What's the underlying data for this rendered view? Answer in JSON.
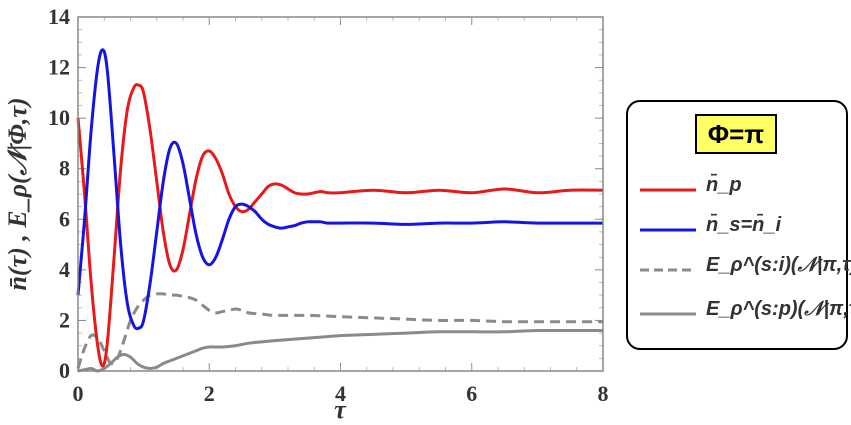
{
  "chart_data": {
    "type": "line",
    "title": "",
    "xlabel": "τ",
    "ylabel": "n̄(τ) , E_ρ(𝒩|Φ,τ)",
    "xlim": [
      0,
      8
    ],
    "ylim": [
      0,
      14
    ],
    "xticks": [
      "0",
      "2",
      "4",
      "6",
      "8"
    ],
    "yticks": [
      "0",
      "2",
      "4",
      "6",
      "8",
      "10",
      "12",
      "14"
    ],
    "legend_title": "Φ=π",
    "legend_position": "right",
    "series": [
      {
        "name": "n̄_p",
        "color": "#e8191a",
        "dash": "solid",
        "x": [
          0,
          0.1,
          0.2,
          0.3,
          0.38,
          0.45,
          0.55,
          0.65,
          0.75,
          0.85,
          0.93,
          1.0,
          1.1,
          1.2,
          1.3,
          1.4,
          1.5,
          1.6,
          1.7,
          1.8,
          1.9,
          2.0,
          2.1,
          2.2,
          2.3,
          2.4,
          2.5,
          2.6,
          2.7,
          2.8,
          2.9,
          3.0,
          3.1,
          3.2,
          3.3,
          3.4,
          3.5,
          3.6,
          3.7,
          3.8,
          4.0,
          4.5,
          5.0,
          5.5,
          6.0,
          6.5,
          7.0,
          7.5,
          8.0
        ],
        "y": [
          10.0,
          7.0,
          3.5,
          1.0,
          0.2,
          1.2,
          4.5,
          8.0,
          10.3,
          11.2,
          11.3,
          11.0,
          9.5,
          7.5,
          5.5,
          4.2,
          4.0,
          4.8,
          6.2,
          7.6,
          8.5,
          8.7,
          8.4,
          7.8,
          7.0,
          6.5,
          6.3,
          6.4,
          6.7,
          7.0,
          7.3,
          7.4,
          7.35,
          7.2,
          7.05,
          7.0,
          7.0,
          7.05,
          7.1,
          7.05,
          7.05,
          7.15,
          7.05,
          7.15,
          7.05,
          7.2,
          7.05,
          7.15,
          7.15
        ]
      },
      {
        "name": "n̄_s=n̄_i",
        "color": "#1515e0",
        "dash": "solid",
        "x": [
          0,
          0.1,
          0.2,
          0.3,
          0.38,
          0.45,
          0.55,
          0.65,
          0.75,
          0.85,
          0.93,
          1.0,
          1.1,
          1.2,
          1.3,
          1.4,
          1.5,
          1.6,
          1.7,
          1.8,
          1.9,
          2.0,
          2.1,
          2.2,
          2.3,
          2.4,
          2.5,
          2.6,
          2.7,
          2.8,
          2.9,
          3.0,
          3.1,
          3.2,
          3.3,
          3.4,
          3.5,
          3.6,
          3.7,
          3.8,
          4.0,
          4.5,
          5.0,
          5.5,
          6.0,
          6.5,
          7.0,
          7.5,
          8.0
        ],
        "y": [
          3.0,
          6.0,
          9.5,
          12.0,
          12.7,
          11.8,
          8.5,
          5.0,
          2.7,
          1.8,
          1.7,
          2.0,
          3.5,
          5.5,
          7.5,
          8.8,
          9.0,
          8.2,
          6.8,
          5.4,
          4.5,
          4.2,
          4.5,
          5.2,
          6.0,
          6.5,
          6.6,
          6.5,
          6.3,
          6.0,
          5.8,
          5.7,
          5.65,
          5.7,
          5.75,
          5.85,
          5.9,
          5.9,
          5.9,
          5.85,
          5.85,
          5.85,
          5.8,
          5.85,
          5.85,
          5.9,
          5.85,
          5.85,
          5.85
        ]
      },
      {
        "name": "E_ρ^(s:i)(𝒩|π,τ)",
        "color": "#8a8a8a",
        "dash": "dashed",
        "x": [
          0,
          0.1,
          0.2,
          0.3,
          0.4,
          0.5,
          0.6,
          0.7,
          0.8,
          0.9,
          1.0,
          1.1,
          1.2,
          1.3,
          1.4,
          1.5,
          1.6,
          1.7,
          1.8,
          1.9,
          2.0,
          2.1,
          2.2,
          2.3,
          2.4,
          2.5,
          2.6,
          2.8,
          3.0,
          3.5,
          4.0,
          4.5,
          5.0,
          5.5,
          6.0,
          6.5,
          7.0,
          7.5,
          8.0
        ],
        "y": [
          0.1,
          0.9,
          1.4,
          1.3,
          0.8,
          0.3,
          0.5,
          1.2,
          2.0,
          2.5,
          2.8,
          3.0,
          3.05,
          3.05,
          3.0,
          3.0,
          2.95,
          2.9,
          2.8,
          2.6,
          2.4,
          2.3,
          2.35,
          2.4,
          2.45,
          2.4,
          2.3,
          2.25,
          2.2,
          2.2,
          2.15,
          2.1,
          2.05,
          2.0,
          2.0,
          1.95,
          1.95,
          1.95,
          1.95
        ]
      },
      {
        "name": "E_ρ^(s:p)(𝒩|π,τ)",
        "color": "#8a8a8a",
        "dash": "solid",
        "x": [
          0,
          0.1,
          0.2,
          0.3,
          0.4,
          0.5,
          0.6,
          0.7,
          0.8,
          0.9,
          1.0,
          1.1,
          1.2,
          1.3,
          1.4,
          1.5,
          1.6,
          1.7,
          1.8,
          1.9,
          2.0,
          2.2,
          2.4,
          2.6,
          2.8,
          3.0,
          3.5,
          4.0,
          4.5,
          5.0,
          5.5,
          6.0,
          6.5,
          7.0,
          7.5,
          8.0
        ],
        "y": [
          0.0,
          0.05,
          0.1,
          0.0,
          0.1,
          0.3,
          0.55,
          0.65,
          0.55,
          0.3,
          0.15,
          0.1,
          0.15,
          0.3,
          0.4,
          0.5,
          0.6,
          0.7,
          0.8,
          0.9,
          0.95,
          0.95,
          1.0,
          1.1,
          1.15,
          1.2,
          1.3,
          1.4,
          1.45,
          1.5,
          1.55,
          1.55,
          1.55,
          1.6,
          1.6,
          1.6
        ]
      }
    ]
  }
}
